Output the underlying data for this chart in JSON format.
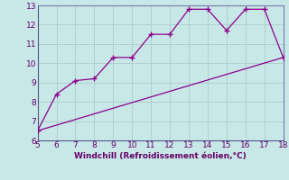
{
  "xlabel": "Windchill (Refroidissement éolien,°C)",
  "line1_x": [
    5,
    6,
    7,
    8,
    9,
    10,
    11,
    12,
    13,
    14,
    15,
    16,
    17,
    18
  ],
  "line1_y": [
    6.5,
    8.4,
    9.1,
    9.2,
    10.3,
    10.3,
    11.5,
    11.5,
    12.8,
    12.8,
    11.7,
    12.8,
    12.8,
    10.3
  ],
  "line2_x": [
    5,
    18
  ],
  "line2_y": [
    6.5,
    10.3
  ],
  "line_color": "#8B008B",
  "bg_color": "#c8e8e8",
  "grid_color": "#b0d0d0",
  "spine_color": "#7777aa",
  "xlim": [
    5,
    18
  ],
  "ylim": [
    6,
    13
  ],
  "xticks": [
    5,
    6,
    7,
    8,
    9,
    10,
    11,
    12,
    13,
    14,
    15,
    16,
    17,
    18
  ],
  "yticks": [
    6,
    7,
    8,
    9,
    10,
    11,
    12,
    13
  ],
  "tick_fontsize": 6.5,
  "xlabel_fontsize": 6.5,
  "tick_color": "#660066",
  "xlabel_color": "#660066"
}
